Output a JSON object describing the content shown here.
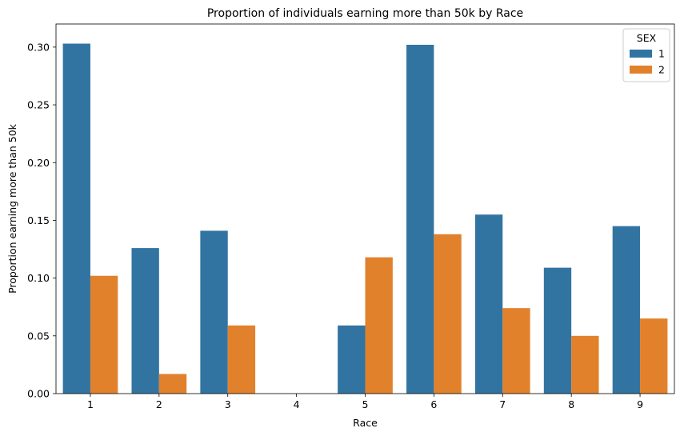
{
  "chart_data": {
    "type": "bar",
    "title": "Proportion of individuals earning more than 50k by Race",
    "xlabel": "Race",
    "ylabel": "Proportion earning more than 50k",
    "categories": [
      "1",
      "2",
      "3",
      "4",
      "5",
      "6",
      "7",
      "8",
      "9"
    ],
    "ylim": [
      0,
      0.32
    ],
    "yticks": [
      "0.00",
      "0.05",
      "0.10",
      "0.15",
      "0.20",
      "0.25",
      "0.30"
    ],
    "grid": false,
    "legend": {
      "title": "SEX",
      "placement": "top-right"
    },
    "series": [
      {
        "name": "1",
        "color": "#3274a1",
        "values": [
          0.303,
          0.126,
          0.141,
          0.0,
          0.059,
          0.302,
          0.155,
          0.109,
          0.145
        ]
      },
      {
        "name": "2",
        "color": "#e1812c",
        "values": [
          0.102,
          0.017,
          0.059,
          0.0,
          0.118,
          0.138,
          0.074,
          0.05,
          0.065
        ]
      }
    ]
  }
}
